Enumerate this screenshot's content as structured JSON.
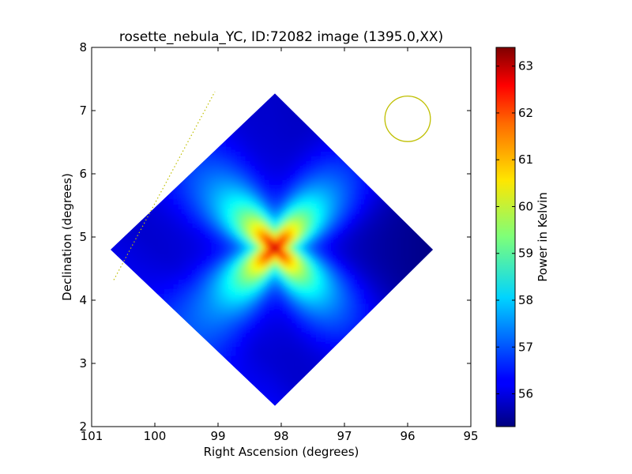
{
  "chart_data": {
    "type": "heatmap",
    "title": "rosette_nebula_YC, ID:72082 image (1395.0,XX)",
    "xlabel": "Right Ascension (degrees)",
    "ylabel": "Declination (degrees)",
    "xlim": [
      101,
      95
    ],
    "ylim": [
      2,
      8
    ],
    "x_ticks": [
      101,
      100,
      99,
      98,
      97,
      96,
      95
    ],
    "x_tick_labels": [
      "101",
      "100",
      "99",
      "98",
      "97",
      "96",
      "95"
    ],
    "y_ticks": [
      2,
      3,
      4,
      5,
      6,
      7,
      8
    ],
    "y_tick_labels": [
      "2",
      "3",
      "4",
      "5",
      "6",
      "7",
      "8"
    ],
    "colormap": "jet",
    "colorbar": {
      "label": "Power in Kelvin",
      "range": [
        55.3,
        63.4
      ],
      "ticks": [
        56,
        57,
        58,
        59,
        60,
        61,
        62,
        63
      ],
      "tick_labels": [
        "56",
        "57",
        "58",
        "59",
        "60",
        "61",
        "62",
        "63"
      ]
    },
    "map_region": {
      "shape": "rounded diamond",
      "vertices_deg": [
        [
          98.1,
          7.27
        ],
        [
          95.6,
          4.8
        ],
        [
          98.1,
          2.33
        ],
        [
          100.7,
          4.8
        ]
      ]
    },
    "peak": {
      "ra": 98.1,
      "dec": 4.83,
      "value": 63.3
    },
    "baseline_value": 56.0,
    "beam_circle": {
      "ra": 96.0,
      "dec": 6.87,
      "radius_deg": 0.36,
      "color": "#bfbf00"
    },
    "dotted_line": {
      "from": [
        100.65,
        4.32
      ],
      "to": [
        99.05,
        7.3
      ],
      "color": "#bfbf00"
    },
    "grid": false
  }
}
